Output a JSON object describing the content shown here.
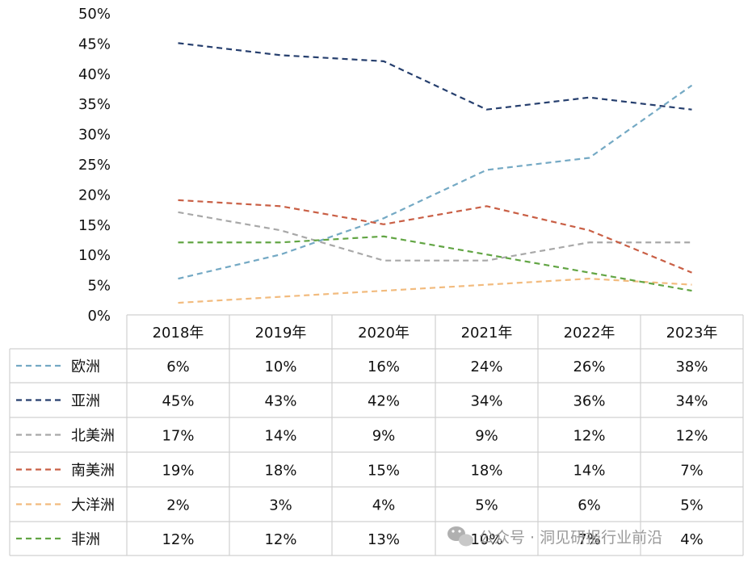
{
  "chart_data": {
    "type": "line",
    "categories": [
      "2018年",
      "2019年",
      "2020年",
      "2021年",
      "2022年",
      "2023年"
    ],
    "ylim": [
      0,
      50
    ],
    "yticks": [
      "0%",
      "5%",
      "10%",
      "15%",
      "20%",
      "25%",
      "30%",
      "35%",
      "40%",
      "45%",
      "50%"
    ],
    "grid": false,
    "legend_position": "table",
    "line_style": "dashed",
    "series": [
      {
        "name": "欧洲",
        "color": "#74a9c4",
        "values": [
          6,
          10,
          16,
          24,
          26,
          38
        ],
        "labels": [
          "6%",
          "10%",
          "16%",
          "24%",
          "26%",
          "38%"
        ]
      },
      {
        "name": "亚洲",
        "color": "#263f6e",
        "values": [
          45,
          43,
          42,
          34,
          36,
          34
        ],
        "labels": [
          "45%",
          "43%",
          "42%",
          "34%",
          "36%",
          "34%"
        ]
      },
      {
        "name": "北美洲",
        "color": "#a8a8a8",
        "values": [
          17,
          14,
          9,
          9,
          12,
          12
        ],
        "labels": [
          "17%",
          "14%",
          "9%",
          "9%",
          "12%",
          "12%"
        ]
      },
      {
        "name": "南美洲",
        "color": "#c95f45",
        "values": [
          19,
          18,
          15,
          18,
          14,
          7
        ],
        "labels": [
          "19%",
          "18%",
          "15%",
          "18%",
          "14%",
          "7%"
        ]
      },
      {
        "name": "大洋洲",
        "color": "#f2bb7e",
        "values": [
          2,
          3,
          4,
          5,
          6,
          5
        ],
        "labels": [
          "2%",
          "3%",
          "4%",
          "5%",
          "6%",
          "5%"
        ]
      },
      {
        "name": "非洲",
        "color": "#62a544",
        "values": [
          12,
          12,
          13,
          10,
          7,
          4
        ],
        "labels": [
          "12%",
          "12%",
          "13%",
          "10%",
          "7%",
          "4%"
        ]
      }
    ]
  },
  "watermark": {
    "text": "公众号 · 洞见研报行业前沿",
    "icon": "wechat-icon"
  }
}
